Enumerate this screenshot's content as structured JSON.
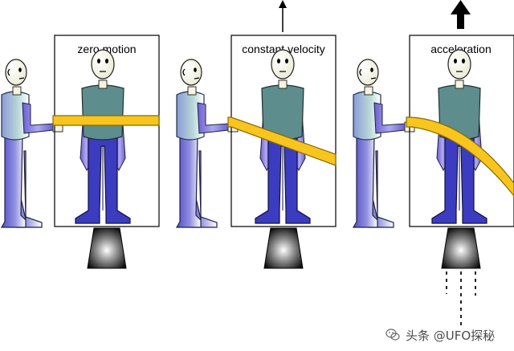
{
  "panels": [
    {
      "label": "zero motion",
      "arrow": "none",
      "exhaust": false
    },
    {
      "label": "constant velocity",
      "arrow": "thin",
      "exhaust": false
    },
    {
      "label": "acceleration",
      "arrow": "thick",
      "exhaust": true
    }
  ],
  "watermark": {
    "text": "头条 @UFO探秘",
    "icon": "wechat-logo-icon"
  },
  "colors": {
    "hose": "#f7c51e",
    "shirt": "#5e8d8d",
    "pants": "#3c3cc0",
    "sleeve": "#8a84e0",
    "skin": "#f4f4e0"
  }
}
